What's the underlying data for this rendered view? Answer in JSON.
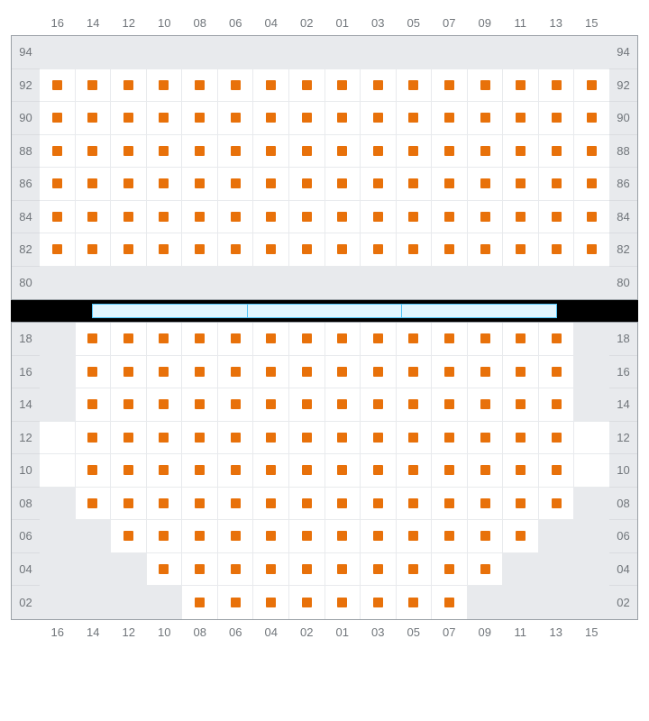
{
  "colors": {
    "seat": "#e8710a",
    "unavail": "#e8eaed",
    "grid": "#e8eaed",
    "border": "#9aa0a6",
    "label": "#70757a",
    "divider_bg": "#000000",
    "divider_seg_fill": "#e1f5fe",
    "divider_seg_border": "#4fc3f7",
    "background": "#ffffff"
  },
  "columns": [
    "16",
    "14",
    "12",
    "10",
    "08",
    "06",
    "04",
    "02",
    "01",
    "03",
    "05",
    "07",
    "09",
    "11",
    "13",
    "15"
  ],
  "upper": {
    "rows": [
      "94",
      "92",
      "90",
      "88",
      "86",
      "84",
      "82",
      "80"
    ],
    "seats": {
      "94": [],
      "92": [
        "16",
        "14",
        "12",
        "10",
        "08",
        "06",
        "04",
        "02",
        "01",
        "03",
        "05",
        "07",
        "09",
        "11",
        "13",
        "15"
      ],
      "90": [
        "16",
        "14",
        "12",
        "10",
        "08",
        "06",
        "04",
        "02",
        "01",
        "03",
        "05",
        "07",
        "09",
        "11",
        "13",
        "15"
      ],
      "88": [
        "16",
        "14",
        "12",
        "10",
        "08",
        "06",
        "04",
        "02",
        "01",
        "03",
        "05",
        "07",
        "09",
        "11",
        "13",
        "15"
      ],
      "86": [
        "16",
        "14",
        "12",
        "10",
        "08",
        "06",
        "04",
        "02",
        "01",
        "03",
        "05",
        "07",
        "09",
        "11",
        "13",
        "15"
      ],
      "84": [
        "16",
        "14",
        "12",
        "10",
        "08",
        "06",
        "04",
        "02",
        "01",
        "03",
        "05",
        "07",
        "09",
        "11",
        "13",
        "15"
      ],
      "82": [
        "16",
        "14",
        "12",
        "10",
        "08",
        "06",
        "04",
        "02",
        "01",
        "03",
        "05",
        "07",
        "09",
        "11",
        "13",
        "15"
      ],
      "80": []
    },
    "unavail": {
      "94": [
        "16",
        "14",
        "12",
        "10",
        "08",
        "06",
        "04",
        "02",
        "01",
        "03",
        "05",
        "07",
        "09",
        "11",
        "13",
        "15"
      ],
      "80": [
        "16",
        "14",
        "12",
        "10",
        "08",
        "06",
        "04",
        "02",
        "01",
        "03",
        "05",
        "07",
        "09",
        "11",
        "13",
        "15"
      ]
    }
  },
  "lower": {
    "rows": [
      "18",
      "16",
      "14",
      "12",
      "10",
      "08",
      "06",
      "04",
      "02"
    ],
    "seats": {
      "18": [
        "14",
        "12",
        "10",
        "08",
        "06",
        "04",
        "02",
        "01",
        "03",
        "05",
        "07",
        "09",
        "11",
        "13"
      ],
      "16": [
        "14",
        "12",
        "10",
        "08",
        "06",
        "04",
        "02",
        "01",
        "03",
        "05",
        "07",
        "09",
        "11",
        "13"
      ],
      "14": [
        "14",
        "12",
        "10",
        "08",
        "06",
        "04",
        "02",
        "01",
        "03",
        "05",
        "07",
        "09",
        "11",
        "13"
      ],
      "12": [
        "14",
        "12",
        "10",
        "08",
        "06",
        "04",
        "02",
        "01",
        "03",
        "05",
        "07",
        "09",
        "11",
        "13"
      ],
      "10": [
        "14",
        "12",
        "10",
        "08",
        "06",
        "04",
        "02",
        "01",
        "03",
        "05",
        "07",
        "09",
        "11",
        "13"
      ],
      "08": [
        "14",
        "12",
        "10",
        "08",
        "06",
        "04",
        "02",
        "01",
        "03",
        "05",
        "07",
        "09",
        "11",
        "13"
      ],
      "06": [
        "12",
        "10",
        "08",
        "06",
        "04",
        "02",
        "01",
        "03",
        "05",
        "07",
        "09",
        "11"
      ],
      "04": [
        "10",
        "08",
        "06",
        "04",
        "02",
        "01",
        "03",
        "05",
        "07",
        "09"
      ],
      "02": [
        "08",
        "06",
        "04",
        "02",
        "01",
        "03",
        "05",
        "07"
      ]
    },
    "unavail": {
      "18": [
        "16",
        "15"
      ],
      "16": [
        "16",
        "15"
      ],
      "14": [
        "16",
        "15"
      ],
      "08": [
        "16",
        "15"
      ],
      "06": [
        "16",
        "14",
        "13",
        "15"
      ],
      "04": [
        "16",
        "14",
        "12",
        "11",
        "13",
        "15"
      ],
      "02": [
        "16",
        "14",
        "12",
        "10",
        "09",
        "11",
        "13",
        "15"
      ]
    }
  },
  "divider_segments": 3
}
